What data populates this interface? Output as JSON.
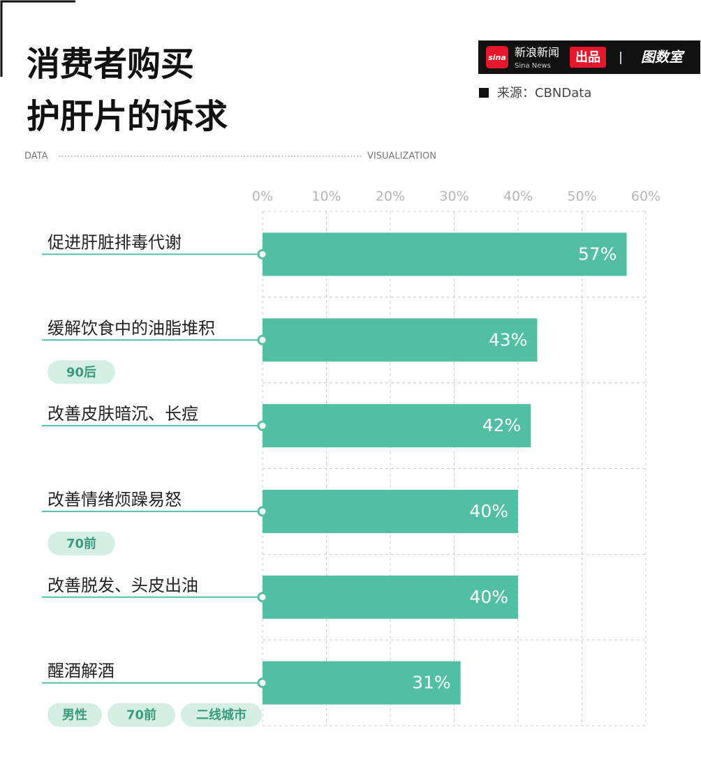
{
  "chart_data": {
    "type": "bar",
    "title": [
      "消费者购买",
      "护肝片的诉求"
    ],
    "left_caption": "DATA",
    "right_caption": "VISUALIZATION",
    "brand": {
      "logo": "sina",
      "name": "新浪新闻",
      "sub": "Sina News",
      "tag": "出品",
      "partner": "图数室"
    },
    "source": "来源：CBNData",
    "categories": [
      "促进肝脏排毒代谢",
      "缓解饮食中的油脂堆积",
      "改善皮肤暗沉、长痘",
      "改善情绪烦躁易怒",
      "改善脱发、头皮出油",
      "醒酒解酒"
    ],
    "tags": [
      [],
      [
        "90后"
      ],
      [],
      [
        "70前"
      ],
      [],
      [
        "男性",
        "70前",
        "二线城市"
      ]
    ],
    "values": [
      57,
      43,
      42,
      40,
      40,
      31
    ],
    "value_labels": [
      "57%",
      "43%",
      "42%",
      "40%",
      "40%",
      "31%"
    ],
    "color": "#52bea3",
    "xlim": [
      0,
      60
    ],
    "xticks": [
      {
        "value": 0,
        "label": "0%"
      },
      {
        "value": 10,
        "label": "10%"
      },
      {
        "value": 20,
        "label": "20%"
      },
      {
        "value": 30,
        "label": "30%"
      },
      {
        "value": 40,
        "label": "40%"
      },
      {
        "value": 50,
        "label": "50%"
      },
      {
        "value": 60,
        "label": "60%"
      }
    ],
    "grid": true
  }
}
